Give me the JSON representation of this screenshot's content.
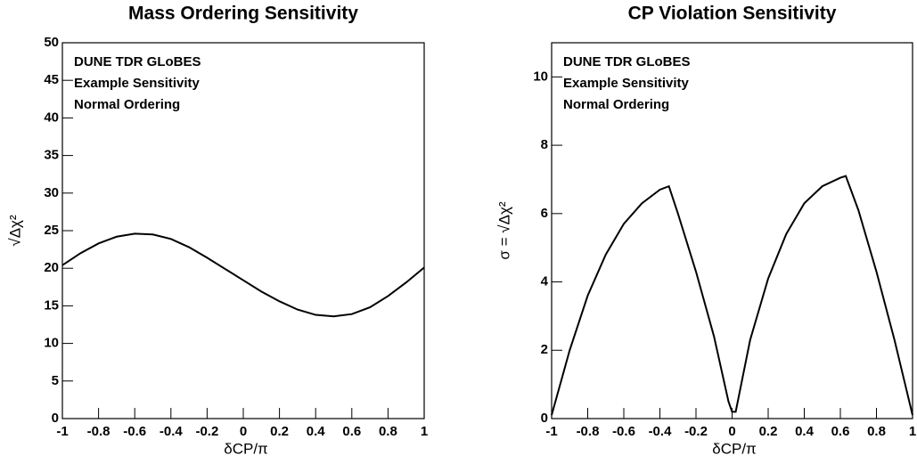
{
  "chart_data": [
    {
      "type": "line",
      "title": "Mass Ordering Sensitivity",
      "annotations": [
        "DUNE TDR GLoBES",
        "Example Sensitivity",
        "Normal Ordering"
      ],
      "x_label": "δCP/π",
      "y_label": "√Δχ²",
      "x": [
        -1,
        -0.9,
        -0.8,
        -0.7,
        -0.6,
        -0.5,
        -0.4,
        -0.3,
        -0.2,
        -0.1,
        0,
        0.1,
        0.2,
        0.3,
        0.4,
        0.5,
        0.6,
        0.7,
        0.8,
        0.9,
        1
      ],
      "values": [
        20.4,
        22.0,
        23.3,
        24.2,
        24.6,
        24.5,
        23.9,
        22.8,
        21.4,
        19.9,
        18.4,
        16.9,
        15.6,
        14.5,
        13.8,
        13.6,
        13.9,
        14.8,
        16.3,
        18.1,
        20.1
      ],
      "color": "#000000",
      "xlim": [
        -1,
        1
      ],
      "xticks": [
        -1,
        -0.8,
        -0.6,
        -0.4,
        -0.2,
        0,
        0.2,
        0.4,
        0.6,
        0.8,
        1
      ],
      "ylim": [
        0,
        50
      ],
      "yticks": [
        0,
        5,
        10,
        15,
        20,
        25,
        30,
        35,
        40,
        45,
        50
      ]
    },
    {
      "type": "line",
      "title": "CP Violation Sensitivity",
      "annotations": [
        "DUNE TDR GLoBES",
        "Example Sensitivity",
        "Normal Ordering"
      ],
      "x_label": "δCP/π",
      "y_label": "σ = √Δχ²",
      "x": [
        -1,
        -0.9,
        -0.8,
        -0.7,
        -0.6,
        -0.5,
        -0.4,
        -0.35,
        -0.3,
        -0.2,
        -0.1,
        -0.02,
        0,
        0.02,
        0.1,
        0.2,
        0.3,
        0.4,
        0.5,
        0.6,
        0.63,
        0.7,
        0.8,
        0.9,
        1
      ],
      "values": [
        0.1,
        2.0,
        3.6,
        4.8,
        5.7,
        6.3,
        6.7,
        6.8,
        6.0,
        4.3,
        2.4,
        0.5,
        0.2,
        0.2,
        2.3,
        4.1,
        5.4,
        6.3,
        6.8,
        7.05,
        7.1,
        6.1,
        4.3,
        2.3,
        0.1
      ],
      "color": "#000000",
      "xlim": [
        -1,
        1
      ],
      "xticks": [
        -1,
        -0.8,
        -0.6,
        -0.4,
        -0.2,
        0,
        0.2,
        0.4,
        0.6,
        0.8,
        1
      ],
      "ylim": [
        0,
        11
      ],
      "yticks": [
        0,
        2,
        4,
        6,
        8,
        10
      ]
    }
  ]
}
